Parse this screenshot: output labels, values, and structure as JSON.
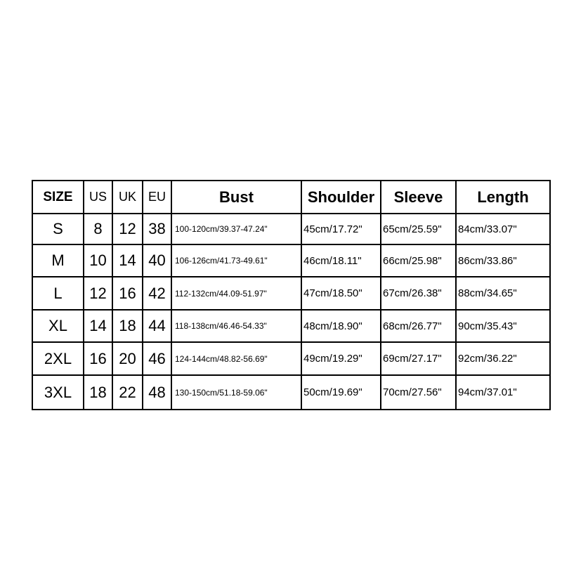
{
  "size_chart": {
    "headers": [
      "SIZE",
      "US",
      "UK",
      "EU",
      "Bust",
      "Shoulder",
      "Sleeve",
      "Length"
    ],
    "rows": [
      [
        "S",
        "8",
        "12",
        "38",
        "100-120cm/39.37-47.24\"",
        "45cm/17.72\"",
        "65cm/25.59\"",
        "84cm/33.07\""
      ],
      [
        "M",
        "10",
        "14",
        "40",
        "106-126cm/41.73-49.61\"",
        "46cm/18.11\"",
        "66cm/25.98\"",
        "86cm/33.86\""
      ],
      [
        "L",
        "12",
        "16",
        "42",
        "112-132cm/44.09-51.97\"",
        "47cm/18.50\"",
        "67cm/26.38\"",
        "88cm/34.65\""
      ],
      [
        "XL",
        "14",
        "18",
        "44",
        "118-138cm/46.46-54.33\"",
        "48cm/18.90\"",
        "68cm/26.77\"",
        "90cm/35.43\""
      ],
      [
        "2XL",
        "16",
        "20",
        "46",
        "124-144cm/48.82-56.69\"",
        "49cm/19.29\"",
        "69cm/27.17\"",
        "92cm/36.22\""
      ],
      [
        "3XL",
        "18",
        "22",
        "48",
        "130-150cm/51.18-59.06\"",
        "50cm/19.69\"",
        "70cm/27.56\"",
        "94cm/37.01\""
      ]
    ]
  }
}
